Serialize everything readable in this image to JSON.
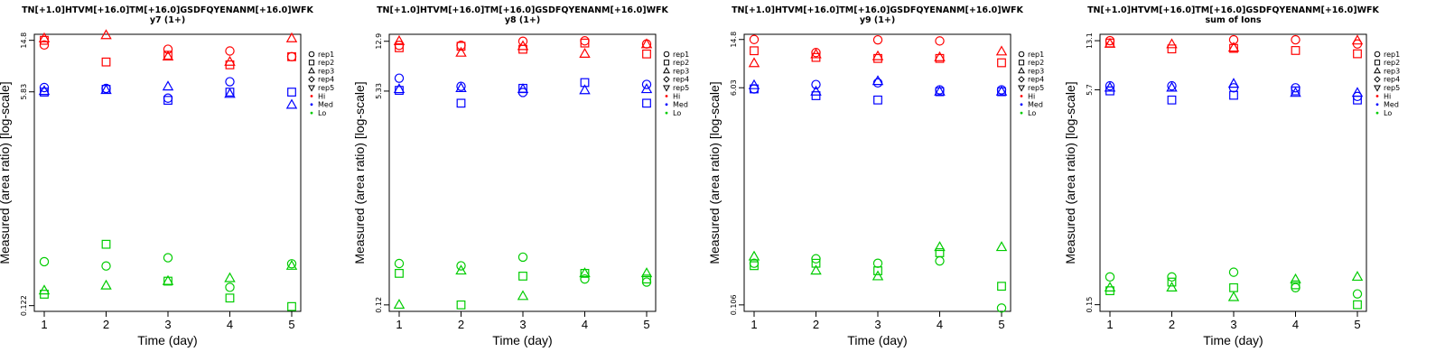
{
  "chart_data": [
    {
      "type": "scatter",
      "title": "TN[+1.0]HTVM[+16.0]TM[+16.0]GSDFQYENANM[+16.0]WFK",
      "subtitle": "y7 (1+)",
      "xlabel": "Time (day)",
      "ylabel": "Measured (area ratio) [log-scale]",
      "x_ticks": [
        "1",
        "2",
        "3",
        "4",
        "5"
      ],
      "y_ticks": [
        {
          "label": "0.122",
          "value": 0.122
        },
        {
          "label": "5.83",
          "value": 5.83
        },
        {
          "label": "14.8",
          "value": 14.8
        }
      ],
      "ylim": [
        0.11,
        16.5
      ],
      "groups": [
        {
          "name": "Hi",
          "color": "#ff0000",
          "series": {
            "rep1": [
              13.6,
              null,
              12.6,
              12.2,
              11.0
            ],
            "rep2": [
              14.8,
              10.0,
              11.3,
              9.5,
              11.0
            ],
            "rep3": [
              15.3,
              16.2,
              11.0,
              10.0,
              15.3
            ]
          }
        },
        {
          "name": "Med",
          "color": "#0000ff",
          "series": {
            "rep1": [
              6.3,
              6.2,
              5.2,
              7.0,
              null
            ],
            "rep2": [
              5.8,
              6.1,
              5.0,
              5.8,
              5.8
            ],
            "rep3": [
              5.9,
              6.0,
              6.4,
              5.6,
              4.6
            ]
          }
        },
        {
          "name": "Lo",
          "color": "#00cc00",
          "series": {
            "rep1": [
              0.27,
              0.25,
              0.29,
              0.17,
              0.26
            ],
            "rep2": [
              0.15,
              0.37,
              0.19,
              0.14,
              0.12
            ],
            "rep3": [
              0.16,
              0.175,
              0.19,
              0.2,
              0.25
            ]
          }
        }
      ]
    },
    {
      "type": "scatter",
      "title": "TN[+1.0]HTVM[+16.0]TM[+16.0]GSDFQYENANM[+16.0]WFK",
      "subtitle": "y8 (1+)",
      "xlabel": "Time (day)",
      "ylabel": "Measured (area ratio) [log-scale]",
      "x_ticks": [
        "1",
        "2",
        "3",
        "4",
        "5"
      ],
      "y_ticks": [
        {
          "label": "0.12",
          "value": 0.12
        },
        {
          "label": "5.33",
          "value": 5.33
        },
        {
          "label": "12.9",
          "value": 12.9
        }
      ],
      "ylim": [
        0.107,
        14.6
      ],
      "groups": [
        {
          "name": "Hi",
          "color": "#ff0000",
          "series": {
            "rep1": [
              12.0,
              12.0,
              12.9,
              13.0,
              12.3
            ],
            "rep2": [
              11.5,
              11.8,
              11.2,
              12.5,
              10.3
            ],
            "rep3": [
              12.9,
              10.5,
              11.8,
              10.3,
              12.2
            ]
          }
        },
        {
          "name": "Med",
          "color": "#0000ff",
          "series": {
            "rep1": [
              6.7,
              5.8,
              5.2,
              null,
              6.0
            ],
            "rep2": [
              5.4,
              4.3,
              5.6,
              6.2,
              4.3
            ],
            "rep3": [
              5.5,
              5.6,
              5.5,
              5.4,
              5.5
            ]
          }
        },
        {
          "name": "Lo",
          "color": "#00cc00",
          "series": {
            "rep1": [
              0.25,
              0.24,
              0.28,
              0.19,
              0.18
            ],
            "rep2": [
              0.21,
              0.12,
              0.2,
              0.21,
              0.19
            ],
            "rep3": [
              0.12,
              0.22,
              0.14,
              0.21,
              0.21
            ]
          }
        }
      ]
    },
    {
      "type": "scatter",
      "title": "TN[+1.0]HTVM[+16.0]TM[+16.0]GSDFQYENANM[+16.0]WFK",
      "subtitle": "y9 (1+)",
      "xlabel": "Time (day)",
      "ylabel": "Measured (area ratio) [log-scale]",
      "x_ticks": [
        "1",
        "2",
        "3",
        "4",
        "5"
      ],
      "y_ticks": [
        {
          "label": "0.106",
          "value": 0.106
        },
        {
          "label": "6.03",
          "value": 6.03
        },
        {
          "label": "14.8",
          "value": 14.8
        }
      ],
      "ylim": [
        0.094,
        16.3
      ],
      "groups": [
        {
          "name": "Hi",
          "color": "#ff0000",
          "series": {
            "rep1": [
              14.8,
              11.6,
              14.7,
              14.4,
              null
            ],
            "rep2": [
              12.0,
              10.6,
              10.4,
              10.4,
              9.6
            ],
            "rep3": [
              9.5,
              11.2,
              10.8,
              10.6,
              11.8
            ]
          }
        },
        {
          "name": "Med",
          "color": "#0000ff",
          "series": {
            "rep1": [
              5.9,
              6.4,
              6.6,
              5.8,
              5.8
            ],
            "rep2": [
              5.9,
              5.2,
              4.8,
              5.6,
              5.6
            ],
            "rep3": [
              6.3,
              5.6,
              6.8,
              5.6,
              5.6
            ]
          }
        },
        {
          "name": "Lo",
          "color": "#00cc00",
          "series": {
            "rep1": [
              0.23,
              0.25,
              0.23,
              0.24,
              0.1
            ],
            "rep2": [
              0.22,
              0.23,
              0.2,
              0.28,
              0.15
            ],
            "rep3": [
              0.26,
              0.2,
              0.18,
              0.31,
              0.31
            ]
          }
        }
      ]
    },
    {
      "type": "scatter",
      "title": "TN[+1.0]HTVM[+16.0]TM[+16.0]GSDFQYENANM[+16.0]WFK",
      "subtitle": "sum of Ions",
      "xlabel": "Time (day)",
      "ylabel": "Measured (area ratio) [log-scale]",
      "x_ticks": [
        "1",
        "2",
        "3",
        "4",
        "5"
      ],
      "y_ticks": [
        {
          "label": "0.15",
          "value": 0.15
        },
        {
          "label": "5.7",
          "value": 5.7
        },
        {
          "label": "13.1",
          "value": 13.1
        }
      ],
      "ylim": [
        0.134,
        14.6
      ],
      "groups": [
        {
          "name": "Hi",
          "color": "#ff0000",
          "series": {
            "rep1": [
              13.1,
              null,
              13.3,
              13.3,
              12.4
            ],
            "rep2": [
              12.6,
              11.4,
              11.5,
              11.1,
              10.5
            ],
            "rep3": [
              12.4,
              12.3,
              11.6,
              null,
              13.1
            ]
          }
        },
        {
          "name": "Med",
          "color": "#0000ff",
          "series": {
            "rep1": [
              6.1,
              6.1,
              5.9,
              5.9,
              5.1
            ],
            "rep2": [
              5.6,
              4.8,
              5.2,
              5.6,
              4.8
            ],
            "rep3": [
              5.9,
              5.9,
              6.3,
              5.4,
              5.4
            ]
          }
        },
        {
          "name": "Lo",
          "color": "#00cc00",
          "series": {
            "rep1": [
              0.24,
              0.24,
              0.26,
              0.2,
              0.18
            ],
            "rep2": [
              0.19,
              0.22,
              0.2,
              0.21,
              0.15
            ],
            "rep3": [
              0.2,
              0.2,
              0.17,
              0.23,
              0.24
            ]
          }
        }
      ]
    }
  ],
  "legend": [
    {
      "label": "rep1",
      "marker": "circle",
      "color": "#000000"
    },
    {
      "label": "rep2",
      "marker": "square",
      "color": "#000000"
    },
    {
      "label": "rep3",
      "marker": "triangle",
      "color": "#000000"
    },
    {
      "label": "rep4",
      "marker": "diamond",
      "color": "#000000"
    },
    {
      "label": "rep5",
      "marker": "triangle-down",
      "color": "#000000"
    },
    {
      "label": "Hi",
      "marker": "dot",
      "color": "#ff0000"
    },
    {
      "label": "Med",
      "marker": "dot",
      "color": "#0000ff"
    },
    {
      "label": "Lo",
      "marker": "dot",
      "color": "#00cc00"
    }
  ],
  "markers": {
    "rep1": "circle",
    "rep2": "square",
    "rep3": "triangle",
    "rep4": "diamond",
    "rep5": "triangle-down"
  }
}
